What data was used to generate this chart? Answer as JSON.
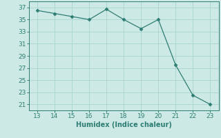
{
  "x": [
    13,
    14,
    15,
    16,
    17,
    18,
    19,
    20,
    21,
    22,
    23
  ],
  "y": [
    36.5,
    36.0,
    35.5,
    35.0,
    36.7,
    35.0,
    33.5,
    35.0,
    27.5,
    22.5,
    21.0
  ],
  "line_color": "#2e7d72",
  "marker": "D",
  "marker_size": 2.5,
  "background_color": "#cce9e5",
  "grid_color": "#aad4cf",
  "xlabel": "Humidex (Indice chaleur)",
  "xlim": [
    12.5,
    23.5
  ],
  "ylim": [
    20.0,
    38.0
  ],
  "xticks": [
    13,
    14,
    15,
    16,
    17,
    18,
    19,
    20,
    21,
    22,
    23
  ],
  "yticks": [
    21,
    23,
    25,
    27,
    29,
    31,
    33,
    35,
    37
  ],
  "tick_color": "#2e7d72",
  "label_fontsize": 7,
  "tick_fontsize": 6.5
}
